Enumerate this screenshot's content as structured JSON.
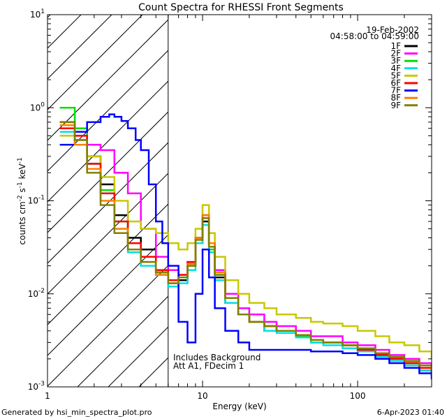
{
  "chart_data": {
    "type": "line",
    "title": "Count Spectra for RHESSI Front Segments",
    "xlabel": "Energy (keV)",
    "ylabel_parts": [
      "counts cm",
      "-2",
      " s",
      "-1",
      " keV",
      "-1"
    ],
    "x_scale": "log",
    "y_scale": "log",
    "xlim": [
      1,
      300
    ],
    "ylim": [
      0.001,
      10
    ],
    "x_ticks": [
      {
        "value": 1,
        "label": "1"
      },
      {
        "value": 10,
        "label": "10"
      },
      {
        "value": 100,
        "label": "100"
      }
    ],
    "y_ticks": [
      {
        "value": 0.001,
        "base": "10",
        "exp": "-3"
      },
      {
        "value": 0.01,
        "base": "10",
        "exp": "-2"
      },
      {
        "value": 0.1,
        "base": "10",
        "exp": "-1"
      },
      {
        "value": 1,
        "base": "10",
        "exp": "0"
      },
      {
        "value": 10,
        "base": "10",
        "exp": "1"
      }
    ],
    "hatch_region": {
      "x_from": 1,
      "x_to": 6
    },
    "date_label": "19-Feb-2002",
    "time_range_label": "04:58:00 to 04:59:00",
    "annotation_lines": [
      "Includes Background",
      "Att A1, FDecim 1"
    ],
    "legend": {
      "position": "top-right"
    },
    "series": [
      {
        "name": "1F",
        "color": "#000000",
        "points": [
          [
            1.2,
            0.7
          ],
          [
            1.5,
            0.55
          ],
          [
            1.8,
            0.3
          ],
          [
            2.2,
            0.15
          ],
          [
            2.7,
            0.07
          ],
          [
            3.3,
            0.04
          ],
          [
            4,
            0.03
          ],
          [
            5,
            0.017
          ],
          [
            6,
            0.012
          ],
          [
            7,
            0.014
          ],
          [
            8,
            0.02
          ],
          [
            9,
            0.035
          ],
          [
            10,
            0.06
          ],
          [
            11,
            0.03
          ],
          [
            12,
            0.015
          ],
          [
            14,
            0.008
          ],
          [
            17,
            0.006
          ],
          [
            20,
            0.005
          ],
          [
            25,
            0.004
          ],
          [
            30,
            0.004
          ],
          [
            40,
            0.0035
          ],
          [
            50,
            0.003
          ],
          [
            60,
            0.003
          ],
          [
            80,
            0.0028
          ],
          [
            100,
            0.0025
          ],
          [
            130,
            0.0022
          ],
          [
            160,
            0.002
          ],
          [
            200,
            0.0018
          ],
          [
            250,
            0.0015
          ],
          [
            300,
            0.0013
          ]
        ]
      },
      {
        "name": "2F",
        "color": "#ff00ff",
        "points": [
          [
            1.2,
            0.6
          ],
          [
            1.5,
            0.5
          ],
          [
            1.8,
            0.4
          ],
          [
            2.2,
            0.35
          ],
          [
            2.7,
            0.2
          ],
          [
            3.3,
            0.12
          ],
          [
            4,
            0.05
          ],
          [
            5,
            0.025
          ],
          [
            6,
            0.018
          ],
          [
            7,
            0.016
          ],
          [
            8,
            0.022
          ],
          [
            9,
            0.04
          ],
          [
            10,
            0.07
          ],
          [
            11,
            0.035
          ],
          [
            12,
            0.018
          ],
          [
            14,
            0.01
          ],
          [
            17,
            0.007
          ],
          [
            20,
            0.006
          ],
          [
            25,
            0.005
          ],
          [
            30,
            0.0045
          ],
          [
            40,
            0.004
          ],
          [
            50,
            0.0035
          ],
          [
            60,
            0.0035
          ],
          [
            80,
            0.003
          ],
          [
            100,
            0.0028
          ],
          [
            130,
            0.0025
          ],
          [
            160,
            0.0022
          ],
          [
            200,
            0.002
          ],
          [
            250,
            0.0018
          ],
          [
            300,
            0.0016
          ]
        ]
      },
      {
        "name": "3F",
        "color": "#00e000",
        "points": [
          [
            1.2,
            1
          ],
          [
            1.5,
            0.6
          ],
          [
            1.8,
            0.25
          ],
          [
            2.2,
            0.13
          ],
          [
            2.7,
            0.06
          ],
          [
            3.3,
            0.035
          ],
          [
            4,
            0.025
          ],
          [
            5,
            0.018
          ],
          [
            6,
            0.013
          ],
          [
            7,
            0.015
          ],
          [
            8,
            0.02
          ],
          [
            9,
            0.04
          ],
          [
            10,
            0.065
          ],
          [
            11,
            0.03
          ],
          [
            12,
            0.016
          ],
          [
            14,
            0.009
          ],
          [
            17,
            0.006
          ],
          [
            20,
            0.005
          ],
          [
            25,
            0.0045
          ],
          [
            30,
            0.004
          ],
          [
            40,
            0.0035
          ],
          [
            50,
            0.003
          ],
          [
            60,
            0.003
          ],
          [
            80,
            0.0028
          ],
          [
            100,
            0.0025
          ],
          [
            130,
            0.0022
          ],
          [
            160,
            0.002
          ],
          [
            200,
            0.0018
          ],
          [
            250,
            0.0016
          ],
          [
            300,
            0.0013
          ]
        ]
      },
      {
        "name": "4F",
        "color": "#00e0e0",
        "points": [
          [
            1.2,
            0.55
          ],
          [
            1.5,
            0.45
          ],
          [
            1.8,
            0.25
          ],
          [
            2.2,
            0.12
          ],
          [
            2.7,
            0.05
          ],
          [
            3.3,
            0.028
          ],
          [
            4,
            0.02
          ],
          [
            5,
            0.016
          ],
          [
            6,
            0.012
          ],
          [
            7,
            0.013
          ],
          [
            8,
            0.018
          ],
          [
            9,
            0.035
          ],
          [
            10,
            0.055
          ],
          [
            11,
            0.028
          ],
          [
            12,
            0.014
          ],
          [
            14,
            0.008
          ],
          [
            17,
            0.006
          ],
          [
            20,
            0.005
          ],
          [
            25,
            0.004
          ],
          [
            30,
            0.0038
          ],
          [
            40,
            0.0034
          ],
          [
            50,
            0.003
          ],
          [
            60,
            0.0028
          ],
          [
            80,
            0.0026
          ],
          [
            100,
            0.0024
          ],
          [
            130,
            0.0021
          ],
          [
            160,
            0.0019
          ],
          [
            200,
            0.0017
          ],
          [
            250,
            0.0015
          ],
          [
            300,
            0.0013
          ]
        ]
      },
      {
        "name": "5F",
        "color": "#c8c800",
        "points": [
          [
            1.2,
            0.5
          ],
          [
            1.5,
            0.45
          ],
          [
            1.8,
            0.3
          ],
          [
            2.2,
            0.18
          ],
          [
            2.7,
            0.1
          ],
          [
            3.3,
            0.06
          ],
          [
            4,
            0.05
          ],
          [
            5,
            0.045
          ],
          [
            6,
            0.035
          ],
          [
            7,
            0.03
          ],
          [
            8,
            0.035
          ],
          [
            9,
            0.05
          ],
          [
            10,
            0.09
          ],
          [
            11,
            0.045
          ],
          [
            12,
            0.025
          ],
          [
            14,
            0.014
          ],
          [
            17,
            0.01
          ],
          [
            20,
            0.008
          ],
          [
            25,
            0.007
          ],
          [
            30,
            0.006
          ],
          [
            40,
            0.0055
          ],
          [
            50,
            0.005
          ],
          [
            60,
            0.0048
          ],
          [
            80,
            0.0045
          ],
          [
            100,
            0.004
          ],
          [
            130,
            0.0035
          ],
          [
            160,
            0.003
          ],
          [
            200,
            0.0028
          ],
          [
            250,
            0.0024
          ],
          [
            300,
            0.002
          ]
        ]
      },
      {
        "name": "6F",
        "color": "#ff0000",
        "points": [
          [
            1.2,
            0.6
          ],
          [
            1.5,
            0.5
          ],
          [
            1.8,
            0.25
          ],
          [
            2.2,
            0.12
          ],
          [
            2.7,
            0.06
          ],
          [
            3.3,
            0.035
          ],
          [
            4,
            0.025
          ],
          [
            5,
            0.018
          ],
          [
            6,
            0.014
          ],
          [
            7,
            0.016
          ],
          [
            8,
            0.022
          ],
          [
            9,
            0.04
          ],
          [
            10,
            0.07
          ],
          [
            11,
            0.035
          ],
          [
            12,
            0.017
          ],
          [
            14,
            0.009
          ],
          [
            17,
            0.006
          ],
          [
            20,
            0.005
          ],
          [
            25,
            0.0045
          ],
          [
            30,
            0.004
          ],
          [
            40,
            0.0036
          ],
          [
            50,
            0.0032
          ],
          [
            60,
            0.003
          ],
          [
            80,
            0.0028
          ],
          [
            100,
            0.0025
          ],
          [
            130,
            0.0022
          ],
          [
            160,
            0.002
          ],
          [
            200,
            0.0018
          ],
          [
            250,
            0.0016
          ],
          [
            300,
            0.0014
          ]
        ]
      },
      {
        "name": "7F",
        "color": "#0000ff",
        "points": [
          [
            1.2,
            0.4
          ],
          [
            1.5,
            0.55
          ],
          [
            1.8,
            0.7
          ],
          [
            2.2,
            0.8
          ],
          [
            2.5,
            0.85
          ],
          [
            2.7,
            0.8
          ],
          [
            3,
            0.72
          ],
          [
            3.3,
            0.6
          ],
          [
            3.7,
            0.45
          ],
          [
            4,
            0.35
          ],
          [
            4.5,
            0.15
          ],
          [
            5,
            0.06
          ],
          [
            5.5,
            0.035
          ],
          [
            6,
            0.02
          ],
          [
            7,
            0.005
          ],
          [
            8,
            0.003
          ],
          [
            9,
            0.01
          ],
          [
            10,
            0.03
          ],
          [
            11,
            0.015
          ],
          [
            12,
            0.007
          ],
          [
            14,
            0.004
          ],
          [
            17,
            0.003
          ],
          [
            20,
            0.0025
          ],
          [
            25,
            0.0025
          ],
          [
            30,
            0.0025
          ],
          [
            40,
            0.0025
          ],
          [
            50,
            0.0024
          ],
          [
            60,
            0.0024
          ],
          [
            80,
            0.0023
          ],
          [
            100,
            0.0022
          ],
          [
            130,
            0.002
          ],
          [
            160,
            0.0018
          ],
          [
            200,
            0.0016
          ],
          [
            250,
            0.0014
          ],
          [
            300,
            0.0012
          ]
        ]
      },
      {
        "name": "8F",
        "color": "#ff8000",
        "points": [
          [
            1.2,
            0.65
          ],
          [
            1.5,
            0.4
          ],
          [
            1.8,
            0.22
          ],
          [
            2.2,
            0.1
          ],
          [
            2.7,
            0.05
          ],
          [
            3.3,
            0.03
          ],
          [
            4,
            0.022
          ],
          [
            5,
            0.016
          ],
          [
            6,
            0.013
          ],
          [
            7,
            0.015
          ],
          [
            8,
            0.021
          ],
          [
            9,
            0.04
          ],
          [
            10,
            0.07
          ],
          [
            11,
            0.035
          ],
          [
            12,
            0.017
          ],
          [
            14,
            0.009
          ],
          [
            17,
            0.006
          ],
          [
            20,
            0.005
          ],
          [
            25,
            0.0045
          ],
          [
            30,
            0.004
          ],
          [
            40,
            0.0036
          ],
          [
            50,
            0.0032
          ],
          [
            60,
            0.003
          ],
          [
            80,
            0.0028
          ],
          [
            100,
            0.0026
          ],
          [
            130,
            0.0023
          ],
          [
            160,
            0.0021
          ],
          [
            200,
            0.0019
          ],
          [
            250,
            0.0017
          ],
          [
            300,
            0.0015
          ]
        ]
      },
      {
        "name": "9F",
        "color": "#808000",
        "points": [
          [
            1.2,
            0.7
          ],
          [
            1.5,
            0.45
          ],
          [
            1.8,
            0.2
          ],
          [
            2.2,
            0.09
          ],
          [
            2.7,
            0.045
          ],
          [
            3.3,
            0.03
          ],
          [
            4,
            0.022
          ],
          [
            5,
            0.017
          ],
          [
            6,
            0.013
          ],
          [
            7,
            0.015
          ],
          [
            8,
            0.02
          ],
          [
            9,
            0.038
          ],
          [
            10,
            0.065
          ],
          [
            11,
            0.032
          ],
          [
            12,
            0.016
          ],
          [
            14,
            0.009
          ],
          [
            17,
            0.006
          ],
          [
            20,
            0.005
          ],
          [
            25,
            0.0045
          ],
          [
            30,
            0.004
          ],
          [
            40,
            0.0036
          ],
          [
            50,
            0.0032
          ],
          [
            60,
            0.003
          ],
          [
            80,
            0.0028
          ],
          [
            100,
            0.0026
          ],
          [
            130,
            0.0023
          ],
          [
            160,
            0.0021
          ],
          [
            200,
            0.0019
          ],
          [
            250,
            0.0017
          ],
          [
            300,
            0.0015
          ]
        ]
      }
    ]
  },
  "footer": {
    "generated_by": "Generated by hsi_min_spectra_plot.pro",
    "timestamp": "6-Apr-2023 01:40"
  }
}
